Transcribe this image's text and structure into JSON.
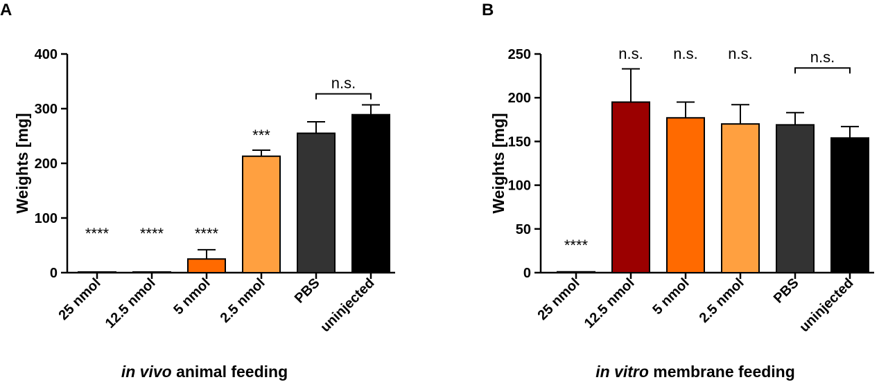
{
  "chart_data": [
    {
      "type": "bar",
      "panel": "A",
      "title": "",
      "xlabel_italic": "in vivo",
      "xlabel_rest": " animal feeding",
      "ylabel": "Weights [mg]",
      "ylim": [
        0,
        400
      ],
      "yticks": [
        0,
        100,
        200,
        300,
        400
      ],
      "categories": [
        "25 nmol",
        "12.5 nmol",
        "5 nmol",
        "2.5 nmol",
        "PBS",
        "uninjected"
      ],
      "values": [
        1,
        1,
        25,
        213,
        255,
        289
      ],
      "errors": [
        0,
        0,
        17,
        11,
        21,
        18
      ],
      "colors": [
        "#e8641c",
        "#e8641c",
        "#ff6a00",
        "#ffa040",
        "#333333",
        "#000000"
      ],
      "annotations": [
        "****",
        "****",
        "****",
        "***",
        "",
        ""
      ],
      "bracket": {
        "from": 4,
        "to": 5,
        "label": "n.s.",
        "y": 327
      }
    },
    {
      "type": "bar",
      "panel": "B",
      "title": "",
      "xlabel_italic": "in vitro",
      "xlabel_rest": " membrane feeding",
      "ylabel": "Weights [mg]",
      "ylim": [
        0,
        250
      ],
      "yticks": [
        0,
        50,
        100,
        150,
        200,
        250
      ],
      "categories": [
        "25 nmol",
        "12.5 nmol",
        "5 nmol",
        "2.5 nmol",
        "PBS",
        "uninjected"
      ],
      "values": [
        1,
        195,
        177,
        170,
        169,
        154
      ],
      "errors": [
        0,
        38,
        18,
        22,
        14,
        13
      ],
      "colors": [
        "#9b0000",
        "#9b0000",
        "#ff6a00",
        "#ffa040",
        "#333333",
        "#000000"
      ],
      "annotations": [
        "****",
        "n.s.",
        "n.s.",
        "n.s.",
        "",
        ""
      ],
      "bracket": {
        "from": 4,
        "to": 5,
        "label": "n.s.",
        "y": 234
      }
    }
  ]
}
